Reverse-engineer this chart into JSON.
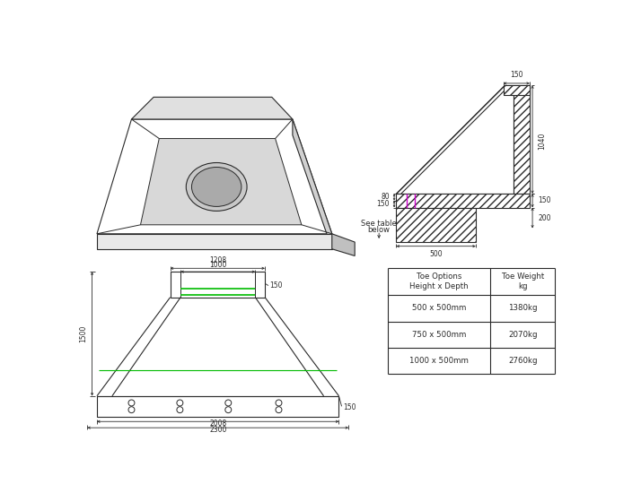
{
  "bg_color": "#ffffff",
  "lc": "#2a2a2a",
  "table_rows": [
    [
      "500 x 500mm",
      "1380kg"
    ],
    [
      "750 x 500mm",
      "2070kg"
    ],
    [
      "1000 x 500mm",
      "2760kg"
    ]
  ]
}
